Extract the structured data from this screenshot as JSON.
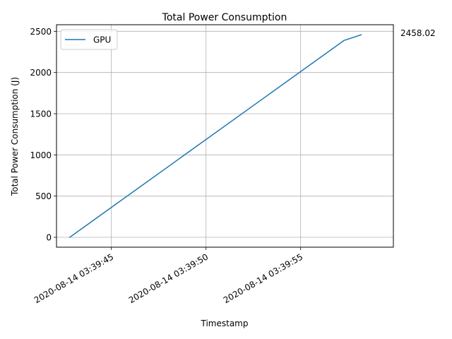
{
  "chart_data": {
    "type": "line",
    "title": "Total Power Consumption",
    "xlabel": "Timestamp",
    "ylabel": "Total Power Consumption (J)",
    "grid": true,
    "legend_position": "upper-left",
    "x_is_time": true,
    "xlim": [
      "2020-08-14 03:39:42.1",
      "2020-08-14 03:39:59.9"
    ],
    "ylim": [
      -120,
      2580
    ],
    "xticks": [
      "2020-08-14 03:39:45",
      "2020-08-14 03:39:50",
      "2020-08-14 03:39:55"
    ],
    "yticks": [
      0,
      500,
      1000,
      1500,
      2000,
      2500
    ],
    "series": [
      {
        "name": "GPU",
        "color": "#1f77b4",
        "x": [
          "2020-08-14 03:39:42.8",
          "2020-08-14 03:39:57.3",
          "2020-08-14 03:39:58.2"
        ],
        "y": [
          0,
          2390,
          2458.02
        ]
      }
    ],
    "annotations": [
      {
        "text": "2458.02"
      }
    ]
  }
}
